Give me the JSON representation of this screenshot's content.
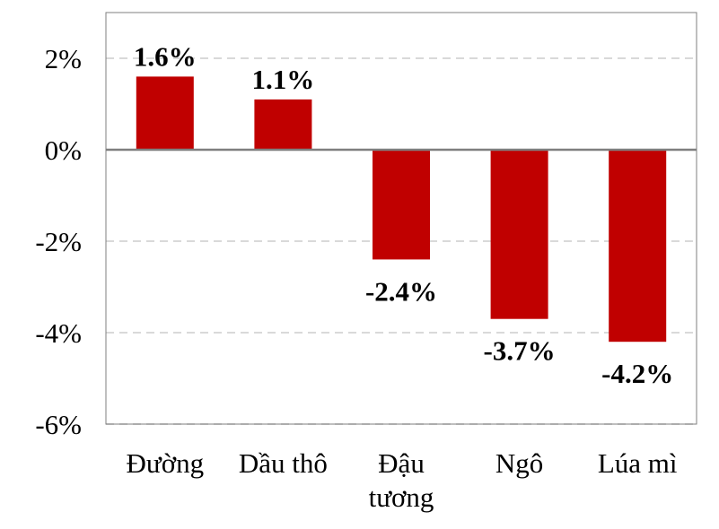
{
  "chart_data": {
    "type": "bar",
    "categories": [
      [
        "Đường"
      ],
      [
        "Dầu thô"
      ],
      [
        "Đậu",
        "tương"
      ],
      [
        "Ngô"
      ],
      [
        "Lúa mì"
      ]
    ],
    "values": [
      1.6,
      1.1,
      -2.4,
      -3.7,
      -4.2
    ],
    "value_labels": [
      "1.6%",
      "1.1%",
      "-2.4%",
      "-3.7%",
      "-4.2%"
    ],
    "ylim": [
      -6,
      3
    ],
    "yticks": [
      2,
      0,
      -2,
      -4,
      -6
    ],
    "ytick_labels": [
      "2%",
      "0%",
      "-2%",
      "-4%",
      "-6%"
    ],
    "grid": true,
    "grid_style": "dashed",
    "title": "",
    "xlabel": "",
    "ylabel": "",
    "legend": "none"
  },
  "colors": {
    "bar": "#C00000",
    "grid": "#D9D9D9",
    "zero_line": "#7F7F7F",
    "frame": "#7F7F7F"
  }
}
